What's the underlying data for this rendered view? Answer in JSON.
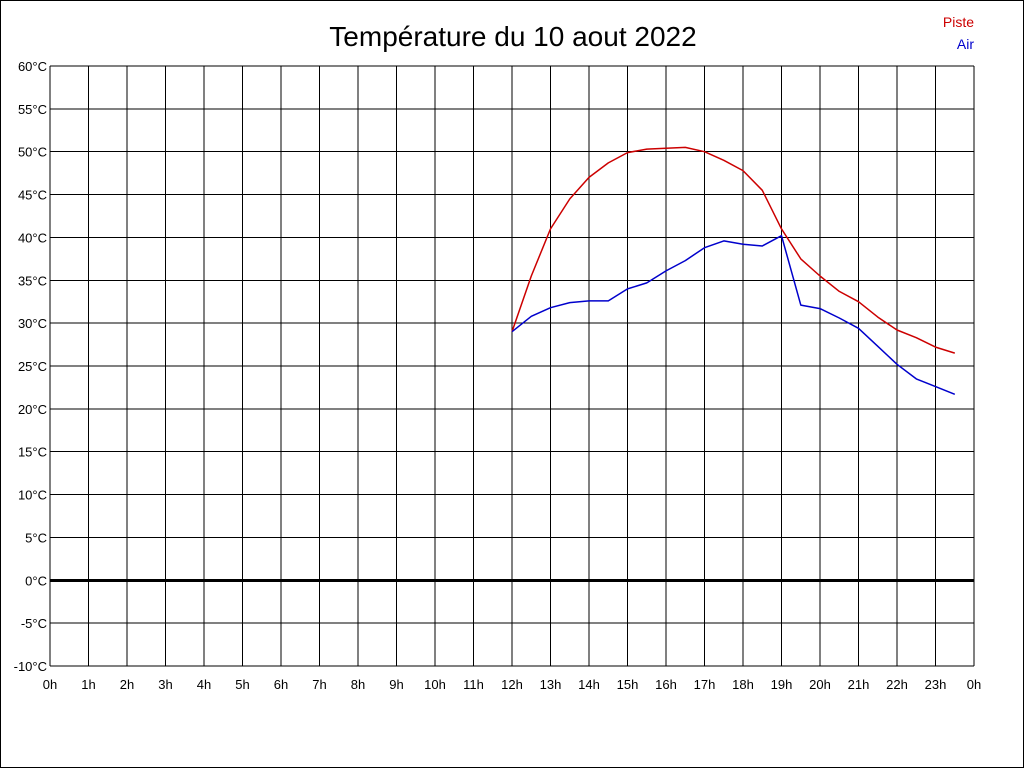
{
  "chart_data": {
    "type": "line",
    "title": "Température du 10 aout 2022",
    "xlabel": "",
    "ylabel": "",
    "ylim": [
      -10,
      60
    ],
    "xlim": [
      0,
      24
    ],
    "grid": true,
    "legend_position": "top-right",
    "x_tick_labels": [
      "0h",
      "1h",
      "2h",
      "3h",
      "4h",
      "5h",
      "6h",
      "7h",
      "8h",
      "9h",
      "10h",
      "11h",
      "12h",
      "13h",
      "14h",
      "15h",
      "16h",
      "17h",
      "18h",
      "19h",
      "20h",
      "21h",
      "22h",
      "23h",
      "0h"
    ],
    "y_tick_labels": [
      "60°C",
      "55°C",
      "50°C",
      "45°C",
      "40°C",
      "35°C",
      "30°C",
      "25°C",
      "20°C",
      "15°C",
      "10°C",
      "5°C",
      "0°C",
      "-5°C",
      "-10°C"
    ],
    "y_tick_values": [
      60,
      55,
      50,
      45,
      40,
      35,
      30,
      25,
      20,
      15,
      10,
      5,
      0,
      -5,
      -10
    ],
    "zero_line": 0,
    "series": [
      {
        "name": "Piste",
        "color": "#cc0000",
        "points": [
          [
            12,
            29
          ],
          [
            12.5,
            35.5
          ],
          [
            13,
            41
          ],
          [
            13.5,
            44.5
          ],
          [
            14,
            47
          ],
          [
            14.5,
            48.7
          ],
          [
            15,
            49.9
          ],
          [
            15.5,
            50.3
          ],
          [
            16,
            50.4
          ],
          [
            16.5,
            50.5
          ],
          [
            17,
            50
          ],
          [
            17.5,
            49
          ],
          [
            18,
            47.8
          ],
          [
            18.5,
            45.5
          ],
          [
            19,
            41
          ],
          [
            19.5,
            37.5
          ],
          [
            20,
            35.5
          ],
          [
            20.5,
            33.7
          ],
          [
            21,
            32.5
          ],
          [
            21.5,
            30.7
          ],
          [
            22,
            29.2
          ],
          [
            22.5,
            28.3
          ],
          [
            23,
            27.2
          ],
          [
            23.5,
            26.5
          ]
        ]
      },
      {
        "name": "Air",
        "color": "#0000cc",
        "points": [
          [
            12,
            29
          ],
          [
            12.5,
            30.8
          ],
          [
            13,
            31.8
          ],
          [
            13.5,
            32.4
          ],
          [
            14,
            32.6
          ],
          [
            14.5,
            32.6
          ],
          [
            15,
            34
          ],
          [
            15.5,
            34.7
          ],
          [
            16,
            36.1
          ],
          [
            16.5,
            37.3
          ],
          [
            17,
            38.8
          ],
          [
            17.5,
            39.6
          ],
          [
            18,
            39.2
          ],
          [
            18.5,
            39
          ],
          [
            19,
            40.2
          ],
          [
            19.5,
            32.1
          ],
          [
            20,
            31.7
          ],
          [
            20.5,
            30.6
          ],
          [
            21,
            29.4
          ],
          [
            21.5,
            27.3
          ],
          [
            22,
            25.2
          ],
          [
            22.5,
            23.5
          ],
          [
            23,
            22.6
          ],
          [
            23.5,
            21.7
          ]
        ]
      }
    ]
  }
}
